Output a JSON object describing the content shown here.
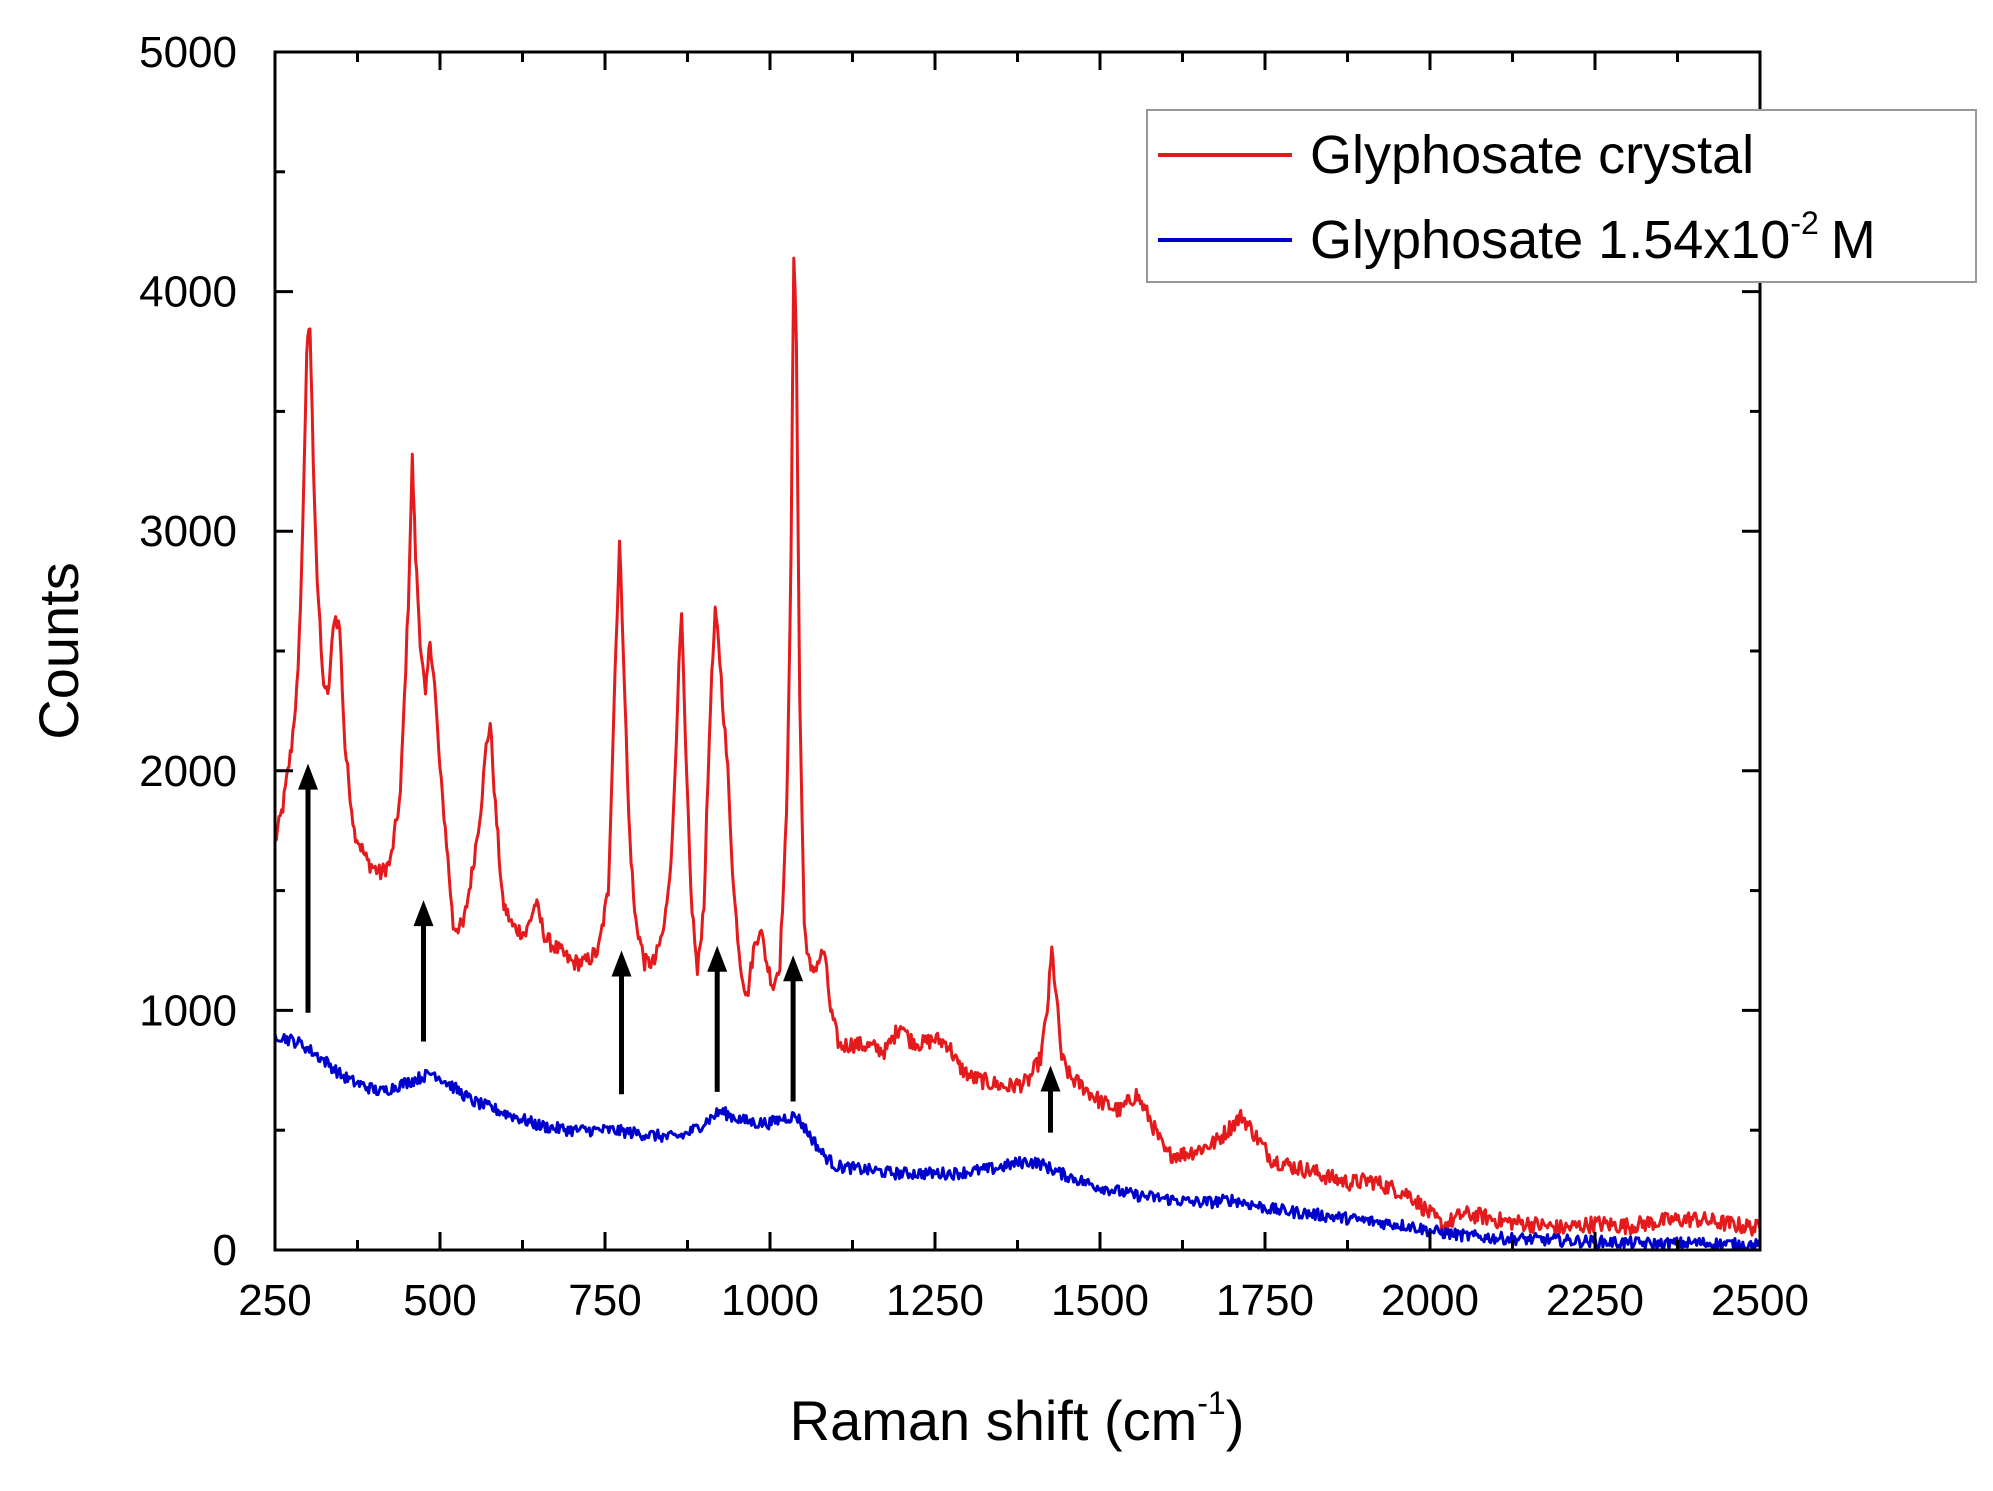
{
  "chart_data": {
    "type": "line",
    "title": "",
    "xlabel": "Raman shift (cm",
    "xlabel_sup": "-1",
    "xlabel_close": ")",
    "ylabel": "Counts",
    "xlim": [
      250,
      2500
    ],
    "ylim": [
      0,
      5000
    ],
    "x_ticks": [
      250,
      500,
      750,
      1000,
      1250,
      1500,
      1750,
      2000,
      2250,
      2500
    ],
    "x_tick_labels": [
      "250",
      "500",
      "750",
      "1000",
      "1250",
      "1500",
      "1750",
      "2000",
      "2250",
      "2500"
    ],
    "y_ticks": [
      0,
      1000,
      2000,
      3000,
      4000,
      5000
    ],
    "y_tick_labels": [
      "0",
      "1000",
      "2000",
      "3000",
      "4000",
      "5000"
    ],
    "grid": false,
    "legend_position": "top-right",
    "series": [
      {
        "name": "Glyphosate crystal",
        "legend_main": "Glyphosate crystal",
        "color": "#e41a1c",
        "x": [
          250,
          262,
          275,
          285,
          292,
          298,
          303,
          308,
          314,
          322,
          330,
          340,
          348,
          356,
          370,
          390,
          410,
          425,
          440,
          452,
          458,
          463,
          470,
          478,
          485,
          492,
          500,
          510,
          520,
          535,
          550,
          562,
          570,
          576,
          584,
          595,
          610,
          630,
          645,
          660,
          680,
          700,
          720,
          740,
          755,
          765,
          772,
          778,
          786,
          795,
          810,
          825,
          840,
          852,
          860,
          866,
          872,
          880,
          890,
          900,
          910,
          917,
          922,
          928,
          936,
          945,
          955,
          965,
          975,
          985,
          995,
          1005,
          1015,
          1025,
          1032,
          1036,
          1040,
          1045,
          1052,
          1062,
          1072,
          1082,
          1092,
          1105,
          1125,
          1150,
          1175,
          1200,
          1210,
          1230,
          1250,
          1270,
          1285,
          1305,
          1330,
          1360,
          1390,
          1410,
          1420,
          1427,
          1434,
          1442,
          1455,
          1475,
          1500,
          1530,
          1555,
          1575,
          1600,
          1625,
          1650,
          1675,
          1700,
          1715,
          1735,
          1760,
          1790,
          1820,
          1850,
          1880,
          1910,
          1940,
          1970,
          2000,
          2020,
          2050,
          2080,
          2110,
          2150,
          2200,
          2250,
          2300,
          2350,
          2400,
          2450,
          2500
        ],
        "y": [
          1700,
          1850,
          2100,
          2400,
          3000,
          3750,
          3850,
          3300,
          2800,
          2400,
          2300,
          2650,
          2600,
          2100,
          1750,
          1620,
          1570,
          1620,
          1900,
          2700,
          3300,
          2900,
          2550,
          2300,
          2550,
          2350,
          2000,
          1700,
          1350,
          1350,
          1600,
          1850,
          2100,
          2200,
          1850,
          1450,
          1350,
          1320,
          1450,
          1300,
          1250,
          1200,
          1200,
          1250,
          1500,
          2400,
          2950,
          2500,
          1800,
          1400,
          1200,
          1200,
          1350,
          1700,
          2300,
          2650,
          2100,
          1500,
          1150,
          1450,
          2300,
          2650,
          2550,
          2300,
          2000,
          1500,
          1200,
          1050,
          1250,
          1350,
          1200,
          1100,
          1200,
          1800,
          2900,
          4150,
          3800,
          2300,
          1350,
          1150,
          1200,
          1250,
          1000,
          850,
          860,
          850,
          830,
          950,
          880,
          860,
          880,
          860,
          770,
          720,
          700,
          680,
          700,
          800,
          1000,
          1250,
          1050,
          800,
          720,
          680,
          620,
          580,
          650,
          550,
          400,
          400,
          420,
          450,
          520,
          560,
          480,
          380,
          350,
          330,
          300,
          280,
          290,
          260,
          230,
          150,
          100,
          150,
          140,
          120,
          110,
          90,
          110,
          100,
          120,
          130,
          110,
          90
        ]
      },
      {
        "name": "Glyphosate 1.54x10-2 M",
        "legend_main": "Glyphosate 1.54x10",
        "legend_sup": "-2",
        "legend_unit": "M",
        "color": "#0000cc",
        "x": [
          250,
          270,
          290,
          310,
          330,
          350,
          370,
          390,
          410,
          430,
          450,
          470,
          490,
          510,
          530,
          550,
          570,
          590,
          610,
          630,
          650,
          670,
          700,
          730,
          760,
          790,
          820,
          850,
          870,
          890,
          910,
          925,
          940,
          960,
          980,
          1000,
          1020,
          1040,
          1060,
          1080,
          1100,
          1130,
          1160,
          1190,
          1220,
          1250,
          1280,
          1310,
          1340,
          1370,
          1390,
          1410,
          1425,
          1440,
          1460,
          1490,
          1520,
          1550,
          1580,
          1610,
          1640,
          1670,
          1700,
          1730,
          1760,
          1790,
          1820,
          1850,
          1880,
          1910,
          1940,
          1970,
          2000,
          2050,
          2100,
          2150,
          2200,
          2250,
          2300,
          2350,
          2400,
          2450,
          2500
        ],
        "y": [
          900,
          880,
          860,
          820,
          780,
          730,
          700,
          680,
          660,
          680,
          700,
          720,
          740,
          700,
          660,
          620,
          600,
          580,
          560,
          540,
          520,
          510,
          500,
          500,
          500,
          490,
          480,
          470,
          480,
          510,
          550,
          580,
          560,
          540,
          530,
          530,
          550,
          560,
          480,
          400,
          350,
          340,
          330,
          320,
          320,
          320,
          320,
          330,
          340,
          360,
          370,
          360,
          340,
          320,
          300,
          270,
          250,
          230,
          220,
          210,
          200,
          200,
          210,
          190,
          170,
          160,
          150,
          140,
          130,
          120,
          110,
          100,
          80,
          60,
          50,
          45,
          40,
          35,
          30,
          25,
          30,
          25,
          20
        ]
      }
    ],
    "annotations": [
      {
        "label": "arrow",
        "x": 300,
        "y_from": 990,
        "y_to": 2030
      },
      {
        "label": "arrow",
        "x": 475,
        "y_from": 870,
        "y_to": 1460
      },
      {
        "label": "arrow",
        "x": 775,
        "y_from": 650,
        "y_to": 1250
      },
      {
        "label": "arrow",
        "x": 920,
        "y_from": 660,
        "y_to": 1270
      },
      {
        "label": "arrow",
        "x": 1035,
        "y_from": 620,
        "y_to": 1230
      },
      {
        "label": "arrow",
        "x": 1425,
        "y_from": 490,
        "y_to": 770
      }
    ]
  }
}
